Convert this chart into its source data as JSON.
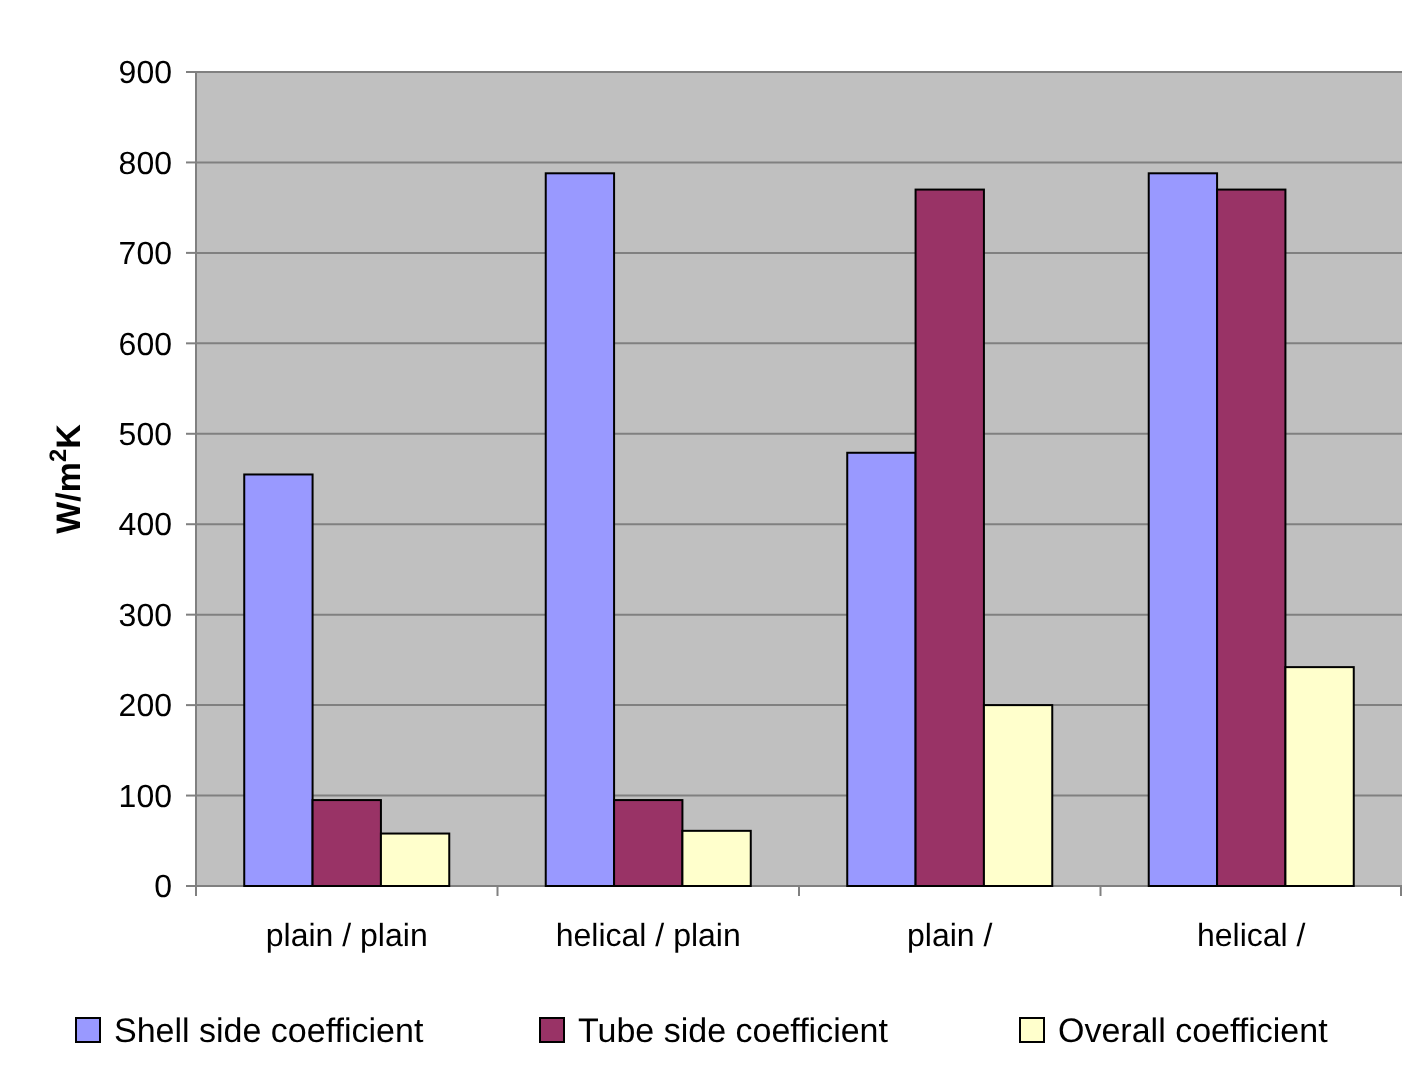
{
  "chart_data": {
    "type": "bar",
    "ylabel": "W/m$^{2}$K",
    "categories": [
      "plain / plain",
      "helical / plain",
      "plain /",
      "helical /"
    ],
    "series": [
      {
        "name": "Shell side coefficient",
        "color": "#9999ff",
        "values": [
          455,
          788,
          479,
          788
        ]
      },
      {
        "name": "Tube side coefficient",
        "color": "#993366",
        "values": [
          95,
          95,
          770,
          770
        ]
      },
      {
        "name": "Overall coefficient",
        "color": "#ffffcc",
        "values": [
          58,
          61,
          200,
          242
        ]
      }
    ],
    "ylim": [
      0,
      900
    ],
    "yticks": [
      0,
      100,
      200,
      300,
      400,
      500,
      600,
      700,
      800,
      900
    ],
    "grid": "y",
    "legend": "bottom"
  }
}
